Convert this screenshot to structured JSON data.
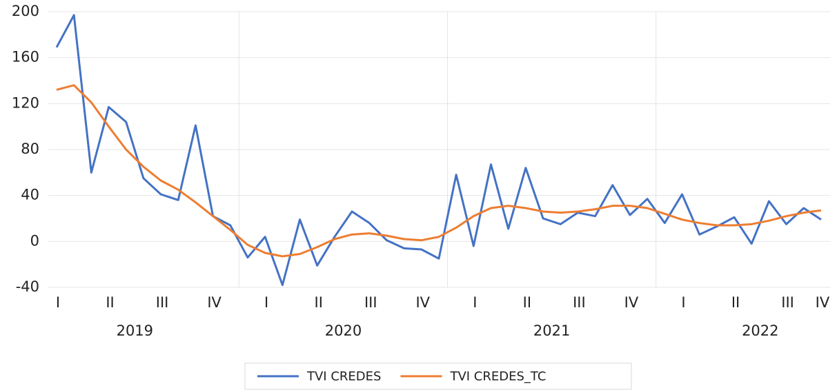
{
  "chart_data": {
    "type": "line",
    "categories": [
      "I",
      null,
      null,
      "II",
      null,
      null,
      "III",
      null,
      null,
      "IV",
      null,
      null,
      "I",
      null,
      null,
      "II",
      null,
      null,
      "III",
      null,
      null,
      "IV",
      null,
      null,
      "I",
      null,
      null,
      "II",
      null,
      null,
      "III",
      null,
      null,
      "IV",
      null,
      null,
      "I",
      null,
      null,
      "II",
      null,
      null,
      "III",
      null,
      "IV"
    ],
    "groups": [
      "2019",
      "2020",
      "2021",
      "2022"
    ],
    "series": [
      {
        "name": "TVI CREDES",
        "color": "#4472c4",
        "values": [
          169,
          197,
          60,
          117,
          104,
          55,
          41,
          36,
          101,
          22,
          14,
          -14,
          4,
          -38,
          19,
          -21,
          4,
          26,
          16,
          1,
          -6,
          -7,
          -15,
          58,
          -4,
          67,
          11,
          64,
          20,
          15,
          25,
          22,
          49,
          23,
          37,
          16,
          41,
          6,
          13,
          21,
          -2,
          35,
          15,
          29,
          19
        ]
      },
      {
        "name": "TVI CREDES_TC",
        "color": "#ed7d31",
        "values": [
          132,
          136,
          121,
          100,
          80,
          65,
          53,
          45,
          34,
          22,
          10,
          -3,
          -10,
          -13,
          -11,
          -5,
          2,
          6,
          7,
          5,
          2,
          1,
          4,
          12,
          22,
          29,
          31,
          29,
          26,
          25,
          26,
          28,
          31,
          31,
          29,
          24,
          19,
          16,
          14,
          14,
          15,
          18,
          22,
          25,
          27
        ]
      }
    ],
    "ylim": [
      -40,
      200
    ],
    "yticks": [
      -40,
      0,
      40,
      80,
      120,
      160,
      200
    ],
    "grid": true
  }
}
